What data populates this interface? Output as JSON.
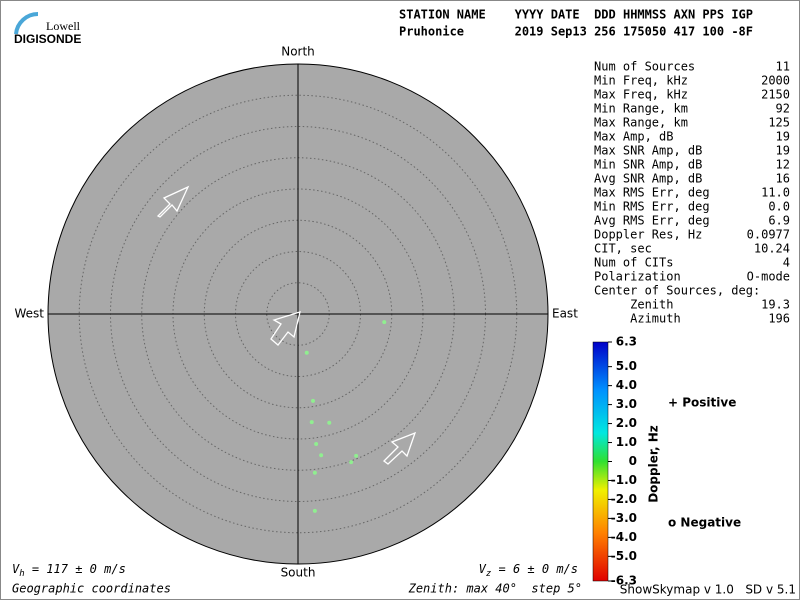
{
  "logo": {
    "top": "Lowell",
    "bottom": "DIGISONDE"
  },
  "header": {
    "columns": "STATION NAME    YYYY DATE  DDD HHMMSS AXN PPS IGP",
    "values": "Pruhonice       2019 Sep13 256 175050 417 100 -8F"
  },
  "stats": [
    [
      "Num of Sources",
      "11"
    ],
    [
      "Min Freq, kHz",
      "2000"
    ],
    [
      "Max Freq, kHz",
      "2150"
    ],
    [
      "Min Range, km",
      "92"
    ],
    [
      "Max Range, km",
      "125"
    ],
    [
      "Max Amp, dB",
      "19"
    ],
    [
      "Max SNR Amp, dB",
      "19"
    ],
    [
      "Min SNR Amp, dB",
      "12"
    ],
    [
      "Avg SNR Amp, dB",
      "16"
    ],
    [
      "Max RMS Err, deg",
      "11.0"
    ],
    [
      "Min RMS Err, deg",
      "0.0"
    ],
    [
      "Avg RMS Err, deg",
      "6.9"
    ],
    [
      "Doppler Res, Hz",
      "0.0977"
    ],
    [
      "CIT, sec",
      "10.24"
    ],
    [
      "Num of CITs",
      "4"
    ],
    [
      "Polarization",
      "O-mode"
    ],
    [
      "Center of Sources, deg:",
      ""
    ],
    [
      "     Zenith",
      "19.3"
    ],
    [
      "     Azimuth",
      "196"
    ]
  ],
  "compass": {
    "north": "North",
    "south": "South",
    "east": "East",
    "west": "West"
  },
  "sources": {
    "color": "#90ee90",
    "east": [
      13.8,
      1.4,
      2.4,
      2.2,
      5.0,
      2.9,
      3.7,
      9.3,
      8.5,
      2.7,
      2.7
    ],
    "north": [
      -1.3,
      -6.2,
      -13.9,
      -17.3,
      -17.4,
      -20.8,
      -22.6,
      -22.7,
      -23.7,
      -25.4,
      -31.5
    ],
    "max_zenith": 40
  },
  "colorbar": {
    "title": "Doppler, Hz",
    "lim": [
      -6.3,
      6.3
    ],
    "ticks": [
      {
        "value": 6.3,
        "label": "6.3"
      },
      {
        "value": 5,
        "label": "5.0"
      },
      {
        "value": 4,
        "label": "4.0"
      },
      {
        "value": 3,
        "label": "3.0"
      },
      {
        "value": 2,
        "label": "2.0"
      },
      {
        "value": 1,
        "label": "1.0"
      },
      0,
      {
        "value": -1,
        "label": "-1.0"
      },
      {
        "value": -2,
        "label": "-2.0"
      },
      {
        "value": -3,
        "label": "-3.0"
      },
      {
        "value": -4,
        "label": "-4.0"
      },
      {
        "value": -5,
        "label": "-5.0"
      },
      {
        "value": -6.3,
        "label": "-6.3"
      }
    ]
  },
  "legend": {
    "positive": "+ Positive",
    "negative": "o Negative"
  },
  "footer": {
    "vh_symbol": "V",
    "vh_sub": "h",
    "vh_text": " = 117 ± 0 m/s",
    "vz_symbol": "V",
    "vz_sub": "z",
    "vz_text": " = 6 ± 0 m/s",
    "coords": "Geographic coordinates",
    "zenith": "Zenith: max 40°  step 5°",
    "version": "ShowSkymap v 1.0   SD v 5.1"
  }
}
